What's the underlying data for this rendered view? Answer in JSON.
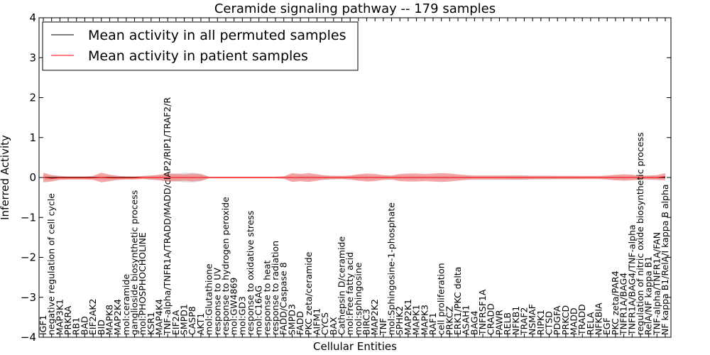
{
  "chart_data": {
    "type": "line",
    "title": "Ceramide signaling pathway -- 179 samples",
    "xlabel": "Cellular Entities",
    "ylabel": "Inferred Activity",
    "ylim": [
      -4,
      4
    ],
    "yticks": [
      -4,
      -3,
      -2,
      -1,
      0,
      1,
      2,
      3,
      4
    ],
    "ytick_labels": [
      "−4",
      "−3",
      "−2",
      "−1",
      "0",
      "1",
      "2",
      "3",
      "4"
    ],
    "legend_position": "top-left",
    "colors": {
      "permuted": "#000000",
      "patient": "#ff0000",
      "patient_band": "#f08080",
      "permuted_band": "#c8c8c8"
    },
    "categories": [
      "IGF1",
      "negative regulation of cell cycle",
      "MAP3K1",
      "PRKRA",
      "RB1",
      "BAD",
      "EIF2AK2",
      "BID",
      "MAPK8",
      "MAP2K4",
      "mol:ceramide",
      "ganglioside biosynthetic process",
      "mol:PHOSPHOCHOLINE",
      "KSR1",
      "MAP4K4",
      "TNF-alpha/TNFR1A/TRADD/MADD/cIAP2/RIP1/TRAF2/R",
      "EIF2A",
      "SMPD1",
      "CASP8",
      "AKT1",
      "mol:Glutathione",
      "response to UV",
      "response to hydrogen peroxide",
      "mol:GW4869",
      "mol:GD3",
      "response to oxidative stress",
      "mol:C16AG",
      "response to heat",
      "response to radiation",
      "FADD/Caspase 8",
      "SMPD3",
      "FADD",
      "PKC zeta/ceramide",
      "AIFM1",
      "CYCS",
      "BAX",
      "Cathepsin D/ceramide",
      "mol:Free fatty acid",
      "mol:sphingosine",
      "BIRC3",
      "MAP2K2",
      "TNF",
      "mol:Sphingosine-1-phosphate",
      "SPHK2",
      "MAP2K1",
      "MAPK1",
      "MAPK3",
      "RAF1",
      "cell proliferation",
      "PRKCZ",
      "ERK1/PKC delta",
      "ASAH1",
      "BAG4",
      "TNFRSF1A",
      "CRADD",
      "PAWR",
      "RELB",
      "NFKB1",
      "TRAF2",
      "NSMAF",
      "RIPK1",
      "CTSD",
      "PDGFA",
      "PRKCD",
      "MADD",
      "TRADD",
      "RELA",
      "NFKBIA",
      "EGF",
      "PKC zeta/PAR4",
      "TNFR1A/BAG4",
      "TNFR1A/BAG4/TNF-alpha",
      "regulation of nitric oxide biosynthetic process",
      "RelA/NF kappa B1",
      "TNF-alpha/TNFR1A/FAN",
      "NF kappa B1/RelA/I kappa B alpha"
    ],
    "series": [
      {
        "name": "Mean activity in all permuted samples",
        "color": "#000000",
        "values": [
          0,
          0,
          0,
          0,
          0,
          0,
          0,
          0,
          0,
          0,
          0,
          0,
          0,
          0,
          0,
          0,
          0,
          0,
          0,
          0,
          0,
          0,
          0,
          0,
          0,
          0,
          0,
          0,
          0,
          0,
          0,
          0,
          0,
          0,
          0,
          0,
          0,
          0,
          0,
          0,
          0,
          0,
          0,
          0,
          0,
          0,
          0,
          0,
          0,
          0,
          0,
          0,
          0,
          0,
          0,
          0,
          0,
          0,
          0,
          0,
          0,
          0,
          0,
          0,
          0,
          0,
          0,
          0,
          0,
          0,
          0,
          0,
          0,
          0,
          0,
          0
        ],
        "band": [
          0.06,
          0.05,
          0.02,
          0.02,
          0.02,
          0.02,
          0.03,
          0.05,
          0.05,
          0.04,
          0.03,
          0.02,
          0.03,
          0.05,
          0.06,
          0.1,
          0.1,
          0.12,
          0.12,
          0.1,
          0.02,
          0.02,
          0.02,
          0.02,
          0.02,
          0.02,
          0.02,
          0.02,
          0.02,
          0.03,
          0.06,
          0.06,
          0.05,
          0.05,
          0.05,
          0.05,
          0.04,
          0.04,
          0.06,
          0.05,
          0.05,
          0.04,
          0.04,
          0.05,
          0.05,
          0.05,
          0.04,
          0.05,
          0.05,
          0.05,
          0.04,
          0.04,
          0.03,
          0.03,
          0.03,
          0.04,
          0.04,
          0.05,
          0.05,
          0.05,
          0.05,
          0.05,
          0.04,
          0.04,
          0.04,
          0.03,
          0.03,
          0.03,
          0.04,
          0.05,
          0.05,
          0.05,
          0.04,
          0.04,
          0.04,
          0.04
        ]
      },
      {
        "name": "Mean activity in patient samples",
        "color": "#ff0000",
        "values": [
          0.0,
          -0.02,
          -0.01,
          -0.01,
          -0.01,
          -0.01,
          -0.01,
          0.0,
          -0.01,
          -0.01,
          -0.01,
          -0.01,
          0.0,
          0.0,
          0.0,
          0.0,
          0.0,
          0.0,
          0.0,
          0.0,
          0.0,
          0.0,
          0.0,
          0.0,
          0.0,
          0.0,
          0.0,
          0.0,
          0.0,
          0.0,
          0.0,
          0.0,
          0.0,
          0.0,
          0.0,
          0.0,
          0.0,
          0.0,
          0.0,
          0.0,
          0.0,
          0.0,
          0.0,
          0.0,
          0.0,
          0.0,
          0.0,
          0.0,
          0.0,
          0.0,
          0.0,
          0.0,
          0.0,
          0.0,
          0.0,
          0.0,
          0.0,
          0.0,
          0.0,
          0.0,
          0.0,
          0.0,
          0.0,
          0.0,
          0.0,
          0.0,
          0.0,
          0.0,
          0.0,
          0.0,
          0.0,
          0.0,
          0.0,
          0.0,
          0.0,
          0.02
        ],
        "band": [
          0.12,
          0.08,
          0.05,
          0.04,
          0.04,
          0.04,
          0.05,
          0.12,
          0.08,
          0.05,
          0.04,
          0.04,
          0.04,
          0.05,
          0.07,
          0.1,
          0.09,
          0.08,
          0.1,
          0.08,
          0.02,
          0.02,
          0.02,
          0.02,
          0.02,
          0.02,
          0.02,
          0.02,
          0.02,
          0.03,
          0.11,
          0.09,
          0.11,
          0.08,
          0.05,
          0.04,
          0.04,
          0.05,
          0.08,
          0.1,
          0.09,
          0.06,
          0.05,
          0.09,
          0.1,
          0.1,
          0.09,
          0.1,
          0.11,
          0.1,
          0.08,
          0.06,
          0.05,
          0.05,
          0.05,
          0.05,
          0.05,
          0.05,
          0.05,
          0.04,
          0.04,
          0.04,
          0.04,
          0.04,
          0.04,
          0.04,
          0.04,
          0.04,
          0.05,
          0.07,
          0.08,
          0.07,
          0.05,
          0.05,
          0.06,
          0.09
        ]
      }
    ]
  }
}
